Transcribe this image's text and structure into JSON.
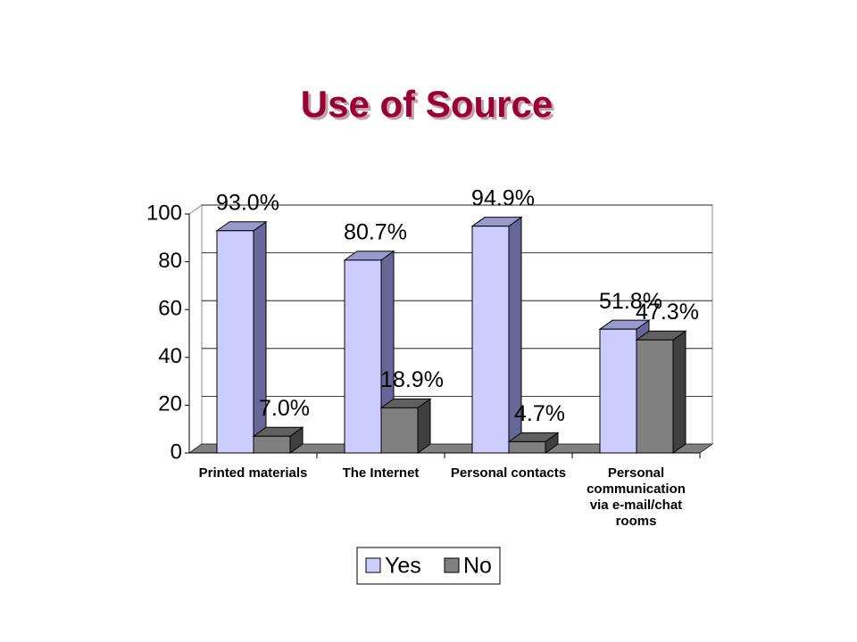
{
  "chart_data": {
    "type": "bar3d",
    "title": "Use of Source",
    "categories": [
      "Printed materials",
      "The Internet",
      "Personal contacts",
      "Personal communication via e-mail/chat rooms"
    ],
    "series": [
      {
        "name": "Yes",
        "color": "#ccccff",
        "values": [
          93.0,
          80.7,
          94.9,
          51.8
        ],
        "value_labels": [
          "93.0%",
          "80.7%",
          "94.9%",
          "51.8%"
        ]
      },
      {
        "name": "No",
        "color": "#808080",
        "values": [
          7.0,
          18.9,
          4.7,
          47.3
        ],
        "value_labels": [
          "7.0%",
          "18.9%",
          "4.7%",
          "47.3%"
        ]
      }
    ],
    "ylim": [
      0,
      100
    ],
    "yticks": [
      0,
      20,
      40,
      60,
      80,
      100
    ],
    "grid": true,
    "legend": "bottom"
  }
}
